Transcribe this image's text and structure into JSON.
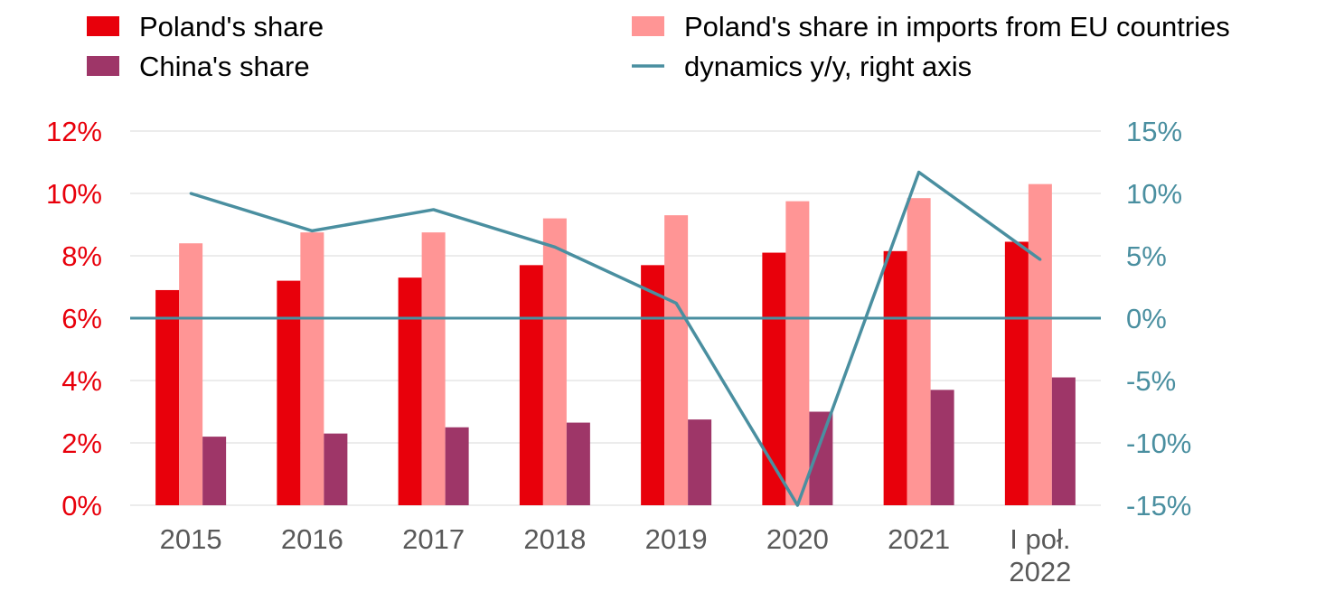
{
  "colors": {
    "poland": "#e8000b",
    "poland_eu": "#ff9595",
    "china": "#9e3668",
    "dynamics": "#4a8fa0",
    "grid": "#d9d9d9",
    "xtick": "#595959"
  },
  "chart_data": {
    "type": "bar",
    "categories": [
      [
        "2015"
      ],
      [
        "2016"
      ],
      [
        "2017"
      ],
      [
        "2018"
      ],
      [
        "2019"
      ],
      [
        "2020"
      ],
      [
        "2021"
      ],
      [
        "I poł.",
        "2022"
      ]
    ],
    "series": [
      {
        "name": "Poland's share",
        "axis": "left",
        "type": "bar",
        "color": "#e8000b",
        "values": [
          6.9,
          7.2,
          7.3,
          7.7,
          7.7,
          8.1,
          8.15,
          8.45
        ]
      },
      {
        "name": "Poland's share in imports from EU countries",
        "axis": "left",
        "type": "bar",
        "color": "#ff9595",
        "values": [
          8.4,
          8.75,
          8.75,
          9.2,
          9.3,
          9.75,
          9.85,
          10.3
        ]
      },
      {
        "name": "China's share",
        "axis": "left",
        "type": "bar",
        "color": "#9e3668",
        "values": [
          2.2,
          2.3,
          2.5,
          2.65,
          2.75,
          3.0,
          3.7,
          4.1
        ]
      },
      {
        "name": "dynamics y/y, right axis",
        "axis": "right",
        "type": "line",
        "color": "#4a8fa0",
        "values": [
          10.0,
          7.0,
          8.7,
          5.7,
          1.2,
          -15.0,
          11.7,
          4.7
        ]
      }
    ],
    "left_axis": {
      "ylim": [
        0,
        12
      ],
      "ticks": [
        0,
        2,
        4,
        6,
        8,
        10,
        12
      ],
      "tick_labels": [
        "0%",
        "2%",
        "4%",
        "6%",
        "8%",
        "10%",
        "12%"
      ]
    },
    "right_axis": {
      "ylim": [
        -15,
        15
      ],
      "ticks": [
        -15,
        -10,
        -5,
        0,
        5,
        10,
        15
      ],
      "tick_labels": [
        "-15%",
        "-10%",
        "-5%",
        "0%",
        "5%",
        "10%",
        "15%"
      ]
    },
    "zero_line_right_axis": 0,
    "grid": true,
    "legend": {
      "placement": "top",
      "items": [
        {
          "label": "Poland's share",
          "kind": "box",
          "color": "#e8000b"
        },
        {
          "label": "Poland's share in imports from EU countries",
          "kind": "box",
          "color": "#ff9595"
        },
        {
          "label": "China's share",
          "kind": "box",
          "color": "#9e3668"
        },
        {
          "label": "dynamics y/y, right axis",
          "kind": "line",
          "color": "#4a8fa0"
        }
      ]
    }
  }
}
